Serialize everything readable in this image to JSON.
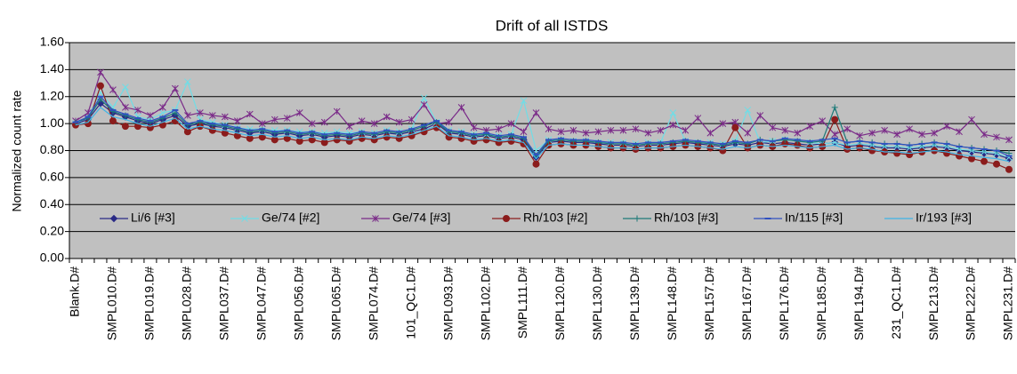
{
  "chart_data": {
    "type": "line",
    "title": "Drift of all ISTDS",
    "y_label": "Normalized count rate",
    "categories": [
      "Blank.D#",
      null,
      null,
      "SMPL010.D#",
      null,
      null,
      "SMPL019.D#",
      null,
      null,
      "SMPL028.D#",
      null,
      null,
      "SMPL037.D#",
      null,
      null,
      "SMPL047.D#",
      null,
      null,
      "SMPL056.D#",
      null,
      null,
      "SMPL065.D#",
      null,
      null,
      "SMPL074.D#",
      null,
      null,
      "101_QC1.D#",
      null,
      null,
      "SMPL093.D#",
      null,
      null,
      "SMPL102.D#",
      null,
      null,
      "SMPL111.D#",
      null,
      null,
      "SMPL120.D#",
      null,
      null,
      "SMPL130.D#",
      null,
      null,
      "SMPL139.D#",
      null,
      null,
      "SMPL148.D#",
      null,
      null,
      "SMPL157.D#",
      null,
      null,
      "SMPL167.D#",
      null,
      null,
      "SMPL176.D#",
      null,
      null,
      "SMPL185.D#",
      null,
      null,
      "SMPL194.D#",
      null,
      null,
      "231_QC1.D#",
      null,
      null,
      "SMPL213.D#",
      null,
      null,
      "SMPL222.D#",
      null,
      null,
      "SMPL231.D#"
    ],
    "ylim": [
      0,
      1.6
    ],
    "yticks": [
      {
        "value": 0,
        "label": "0.00"
      },
      {
        "value": 0.2,
        "label": "0.20"
      },
      {
        "value": 0.4,
        "label": "0.40"
      },
      {
        "value": 0.6,
        "label": "0.60"
      },
      {
        "value": 0.8,
        "label": "0.80"
      },
      {
        "value": 1,
        "label": "1.00"
      },
      {
        "value": 1.2,
        "label": "1.20"
      },
      {
        "value": 1.4,
        "label": "1.40"
      },
      {
        "value": 1.6,
        "label": "1.60"
      }
    ],
    "grid": true,
    "legend": "bottom",
    "background": "#c0c0c0",
    "series": [
      {
        "name": "Li/6 [#3]",
        "color": "#2a2a86",
        "marker": "diamond",
        "values": [
          1.0,
          1.03,
          1.15,
          1.08,
          1.05,
          1.02,
          1.0,
          1.03,
          1.06,
          0.98,
          1.0,
          0.98,
          0.97,
          0.95,
          0.93,
          0.94,
          0.92,
          0.93,
          0.91,
          0.92,
          0.9,
          0.91,
          0.9,
          0.92,
          0.91,
          0.93,
          0.92,
          0.94,
          0.96,
          1.0,
          0.93,
          0.92,
          0.9,
          0.91,
          0.89,
          0.9,
          0.88,
          0.75,
          0.86,
          0.87,
          0.86,
          0.86,
          0.85,
          0.84,
          0.84,
          0.83,
          0.84,
          0.84,
          0.85,
          0.86,
          0.85,
          0.84,
          0.83,
          0.85,
          0.84,
          0.86,
          0.85,
          0.86,
          0.85,
          0.84,
          0.85,
          0.86,
          0.83,
          0.84,
          0.83,
          0.82,
          0.82,
          0.81,
          0.82,
          0.83,
          0.82,
          0.8,
          0.79,
          0.78,
          0.77,
          0.74
        ]
      },
      {
        "name": "Ge/74 [#2]",
        "color": "#70dde6",
        "marker": "x",
        "values": [
          1.0,
          1.05,
          1.23,
          1.12,
          1.27,
          1.05,
          1.03,
          1.08,
          1.1,
          1.31,
          1.03,
          1.01,
          0.99,
          0.97,
          0.96,
          0.96,
          0.95,
          0.95,
          0.94,
          0.94,
          0.93,
          0.94,
          0.93,
          0.94,
          0.93,
          0.95,
          0.94,
          0.96,
          1.19,
          1.01,
          0.95,
          0.94,
          0.92,
          0.92,
          0.91,
          0.92,
          1.17,
          0.8,
          0.88,
          0.88,
          0.87,
          0.87,
          0.86,
          0.86,
          0.86,
          0.85,
          0.86,
          0.86,
          1.08,
          0.87,
          0.86,
          0.86,
          0.85,
          0.87,
          1.1,
          0.86,
          0.87,
          0.88,
          0.87,
          0.86,
          0.85,
          0.86,
          0.84,
          0.85,
          0.84,
          0.83,
          0.83,
          0.82,
          0.83,
          0.84,
          0.83,
          0.81,
          0.8,
          0.79,
          0.78,
          0.75
        ]
      },
      {
        "name": "Ge/74 [#3]",
        "color": "#7a2a88",
        "marker": "star",
        "values": [
          1.02,
          1.08,
          1.38,
          1.25,
          1.12,
          1.1,
          1.06,
          1.12,
          1.26,
          1.06,
          1.08,
          1.06,
          1.05,
          1.02,
          1.07,
          1.0,
          1.03,
          1.04,
          1.08,
          1.0,
          1.01,
          1.09,
          0.98,
          1.02,
          1.0,
          1.05,
          1.01,
          1.03,
          1.14,
          1.0,
          1.01,
          1.12,
          0.97,
          0.95,
          0.96,
          1.0,
          0.94,
          1.08,
          0.96,
          0.94,
          0.95,
          0.93,
          0.94,
          0.95,
          0.95,
          0.96,
          0.93,
          0.95,
          0.99,
          0.95,
          1.04,
          0.93,
          1.0,
          1.01,
          0.93,
          1.06,
          0.97,
          0.95,
          0.93,
          0.98,
          1.02,
          0.92,
          0.96,
          0.91,
          0.93,
          0.95,
          0.92,
          0.96,
          0.92,
          0.93,
          0.98,
          0.94,
          1.03,
          0.92,
          0.9,
          0.88
        ]
      },
      {
        "name": "Rh/103 [#2]",
        "color": "#8b1c1c",
        "marker": "circle",
        "values": [
          0.99,
          1.0,
          1.28,
          1.02,
          0.98,
          0.98,
          0.97,
          0.99,
          1.02,
          0.94,
          0.98,
          0.95,
          0.93,
          0.91,
          0.89,
          0.9,
          0.88,
          0.89,
          0.87,
          0.88,
          0.86,
          0.88,
          0.87,
          0.89,
          0.88,
          0.9,
          0.89,
          0.91,
          0.94,
          0.97,
          0.9,
          0.89,
          0.87,
          0.88,
          0.86,
          0.87,
          0.85,
          0.7,
          0.84,
          0.85,
          0.84,
          0.84,
          0.83,
          0.82,
          0.82,
          0.81,
          0.82,
          0.82,
          0.83,
          0.84,
          0.83,
          0.82,
          0.8,
          0.97,
          0.82,
          0.84,
          0.83,
          0.85,
          0.84,
          0.82,
          0.83,
          1.03,
          0.81,
          0.82,
          0.8,
          0.79,
          0.78,
          0.77,
          0.79,
          0.8,
          0.78,
          0.76,
          0.74,
          0.72,
          0.7,
          0.66
        ]
      },
      {
        "name": "Rh/103 [#3]",
        "color": "#1c7a78",
        "marker": "plus",
        "values": [
          1.01,
          1.04,
          1.18,
          1.09,
          1.06,
          1.03,
          1.01,
          1.04,
          1.08,
          0.99,
          1.01,
          0.99,
          0.98,
          0.96,
          0.94,
          0.95,
          0.93,
          0.94,
          0.92,
          0.93,
          0.91,
          0.92,
          0.91,
          0.93,
          0.92,
          0.94,
          0.93,
          0.95,
          0.98,
          1.01,
          0.94,
          0.93,
          0.91,
          0.92,
          0.9,
          0.91,
          0.89,
          0.76,
          0.87,
          0.88,
          0.87,
          0.87,
          0.86,
          0.85,
          0.85,
          0.84,
          0.85,
          0.85,
          0.86,
          0.87,
          0.86,
          0.85,
          0.84,
          0.86,
          0.85,
          0.88,
          0.87,
          0.88,
          0.87,
          0.86,
          0.87,
          1.12,
          0.86,
          0.87,
          0.86,
          0.85,
          0.85,
          0.84,
          0.85,
          0.86,
          0.85,
          0.83,
          0.82,
          0.81,
          0.8,
          0.78
        ]
      },
      {
        "name": "In/115 [#3]",
        "color": "#3050c0",
        "marker": "dash",
        "values": [
          1.01,
          1.05,
          1.2,
          1.1,
          1.07,
          1.04,
          1.02,
          1.05,
          1.1,
          1.0,
          1.02,
          1.0,
          0.99,
          0.97,
          0.95,
          0.96,
          0.94,
          0.95,
          0.93,
          0.94,
          0.92,
          0.93,
          0.92,
          0.94,
          0.93,
          0.95,
          0.94,
          0.96,
          0.99,
          1.02,
          0.95,
          0.94,
          0.92,
          0.93,
          0.91,
          0.92,
          0.9,
          0.77,
          0.88,
          0.89,
          0.88,
          0.88,
          0.87,
          0.86,
          0.86,
          0.85,
          0.86,
          0.86,
          0.87,
          0.88,
          0.87,
          0.86,
          0.85,
          0.87,
          0.86,
          0.88,
          0.87,
          0.89,
          0.88,
          0.87,
          0.88,
          0.89,
          0.86,
          0.87,
          0.86,
          0.85,
          0.85,
          0.84,
          0.85,
          0.86,
          0.85,
          0.83,
          0.82,
          0.81,
          0.8,
          0.76
        ]
      },
      {
        "name": "Ir/193 [#3]",
        "color": "#3fb4e6",
        "marker": "none",
        "values": [
          0.99,
          1.01,
          1.12,
          1.05,
          1.03,
          1.0,
          0.98,
          1.01,
          1.04,
          0.96,
          0.98,
          0.96,
          0.95,
          0.93,
          0.91,
          0.92,
          0.9,
          0.91,
          0.89,
          0.9,
          0.88,
          0.89,
          0.88,
          0.9,
          0.89,
          0.91,
          0.9,
          0.92,
          0.95,
          0.98,
          0.91,
          0.9,
          0.88,
          0.89,
          0.87,
          0.88,
          0.86,
          0.74,
          0.84,
          0.85,
          0.84,
          0.84,
          0.83,
          0.82,
          0.82,
          0.81,
          0.82,
          0.82,
          0.83,
          0.84,
          0.83,
          0.82,
          0.81,
          0.83,
          0.82,
          0.84,
          0.83,
          0.84,
          0.83,
          0.82,
          0.83,
          0.84,
          0.81,
          0.82,
          0.81,
          0.79,
          0.79,
          0.78,
          0.79,
          0.8,
          0.79,
          0.77,
          0.76,
          0.75,
          0.74,
          0.72
        ]
      }
    ]
  }
}
